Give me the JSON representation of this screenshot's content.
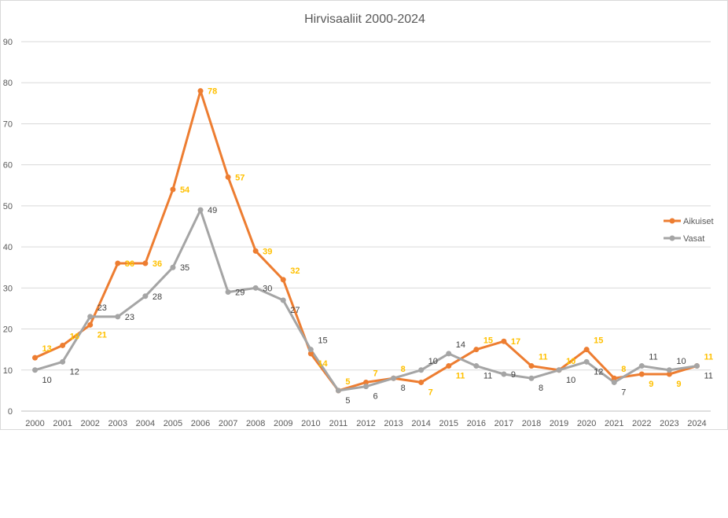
{
  "chart_data": {
    "type": "line",
    "title": "Hirvisaaliit 2000-2024",
    "xlabel": "",
    "ylabel": "",
    "ylim": [
      0,
      90
    ],
    "yticks": [
      0,
      10,
      20,
      30,
      40,
      50,
      60,
      70,
      80,
      90
    ],
    "grid": true,
    "legend_position": "right",
    "categories": [
      "2000",
      "2001",
      "2002",
      "2003",
      "2004",
      "2005",
      "2006",
      "2007",
      "2008",
      "2009",
      "2010",
      "2011",
      "2012",
      "2013",
      "2014",
      "2015",
      "2016",
      "2017",
      "2018",
      "2019",
      "2020",
      "2021",
      "2022",
      "2023",
      "2024"
    ],
    "series": [
      {
        "name": "Aikuiset",
        "color": "#ED7D31",
        "label_color": "#FFC000",
        "values": [
          13,
          16,
          21,
          36,
          36,
          54,
          78,
          57,
          39,
          32,
          14,
          5,
          7,
          8,
          7,
          11,
          15,
          17,
          11,
          10,
          15,
          8,
          9,
          9,
          11
        ]
      },
      {
        "name": "Vasat",
        "color": "#A5A5A5",
        "label_color": "#404040",
        "values": [
          10,
          12,
          23,
          23,
          28,
          35,
          49,
          29,
          30,
          27,
          15,
          5,
          6,
          8,
          10,
          14,
          11,
          9,
          8,
          10,
          12,
          7,
          11,
          10,
          11
        ]
      }
    ]
  }
}
